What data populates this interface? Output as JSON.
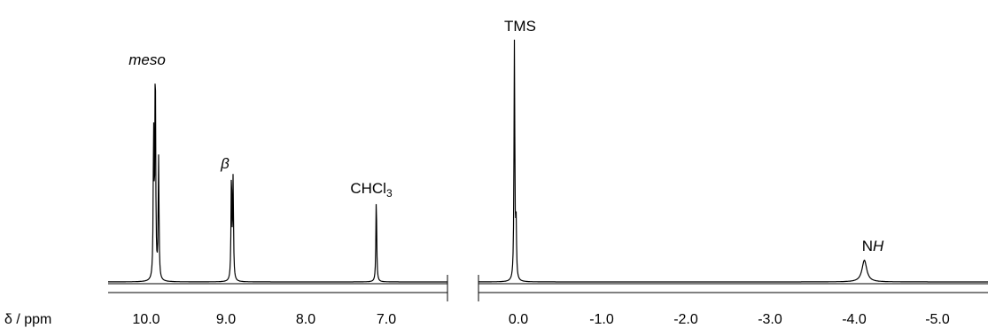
{
  "chart_data": {
    "type": "line",
    "title": "",
    "xlabel": "δ / ppm",
    "ylabel": "",
    "x_reversed": true,
    "axis_break": true,
    "grid": false,
    "segments": [
      {
        "xlim": [
          10.5,
          6.4
        ],
        "ticks": [
          "10.0",
          "9.0",
          "8.0",
          "7.0"
        ],
        "tick_values": [
          10.0,
          9.0,
          8.0,
          7.0
        ]
      },
      {
        "xlim": [
          0.5,
          -5.6
        ],
        "ticks": [
          "0.0",
          "-1.0",
          "-2.0",
          "-3.0",
          "-4.0",
          "-5.0"
        ],
        "tick_values": [
          0.0,
          -1.0,
          -2.0,
          -3.0,
          -4.0,
          -5.0
        ]
      }
    ],
    "peaks": [
      {
        "label": "meso",
        "ppm": 9.93,
        "height": 1.0,
        "italic": true
      },
      {
        "label": "",
        "ppm": 9.95,
        "height": 0.67
      },
      {
        "label": "",
        "ppm": 9.89,
        "height": 0.56
      },
      {
        "label": "β",
        "ppm": 9.01,
        "height": 0.49,
        "italic": true
      },
      {
        "label": "",
        "ppm": 8.99,
        "height": 0.46
      },
      {
        "label": "CHCl",
        "label_sub": "3",
        "ppm": 7.26,
        "height": 0.39
      },
      {
        "label": "TMS",
        "ppm": 0.07,
        "height": 1.1
      },
      {
        "label": "",
        "ppm": 0.05,
        "height": 0.25
      },
      {
        "label": "NH",
        "label_n": "N",
        "label_h": "H",
        "ppm": -4.12,
        "height": 0.1,
        "broad": true
      }
    ],
    "line_color": "#000000"
  }
}
